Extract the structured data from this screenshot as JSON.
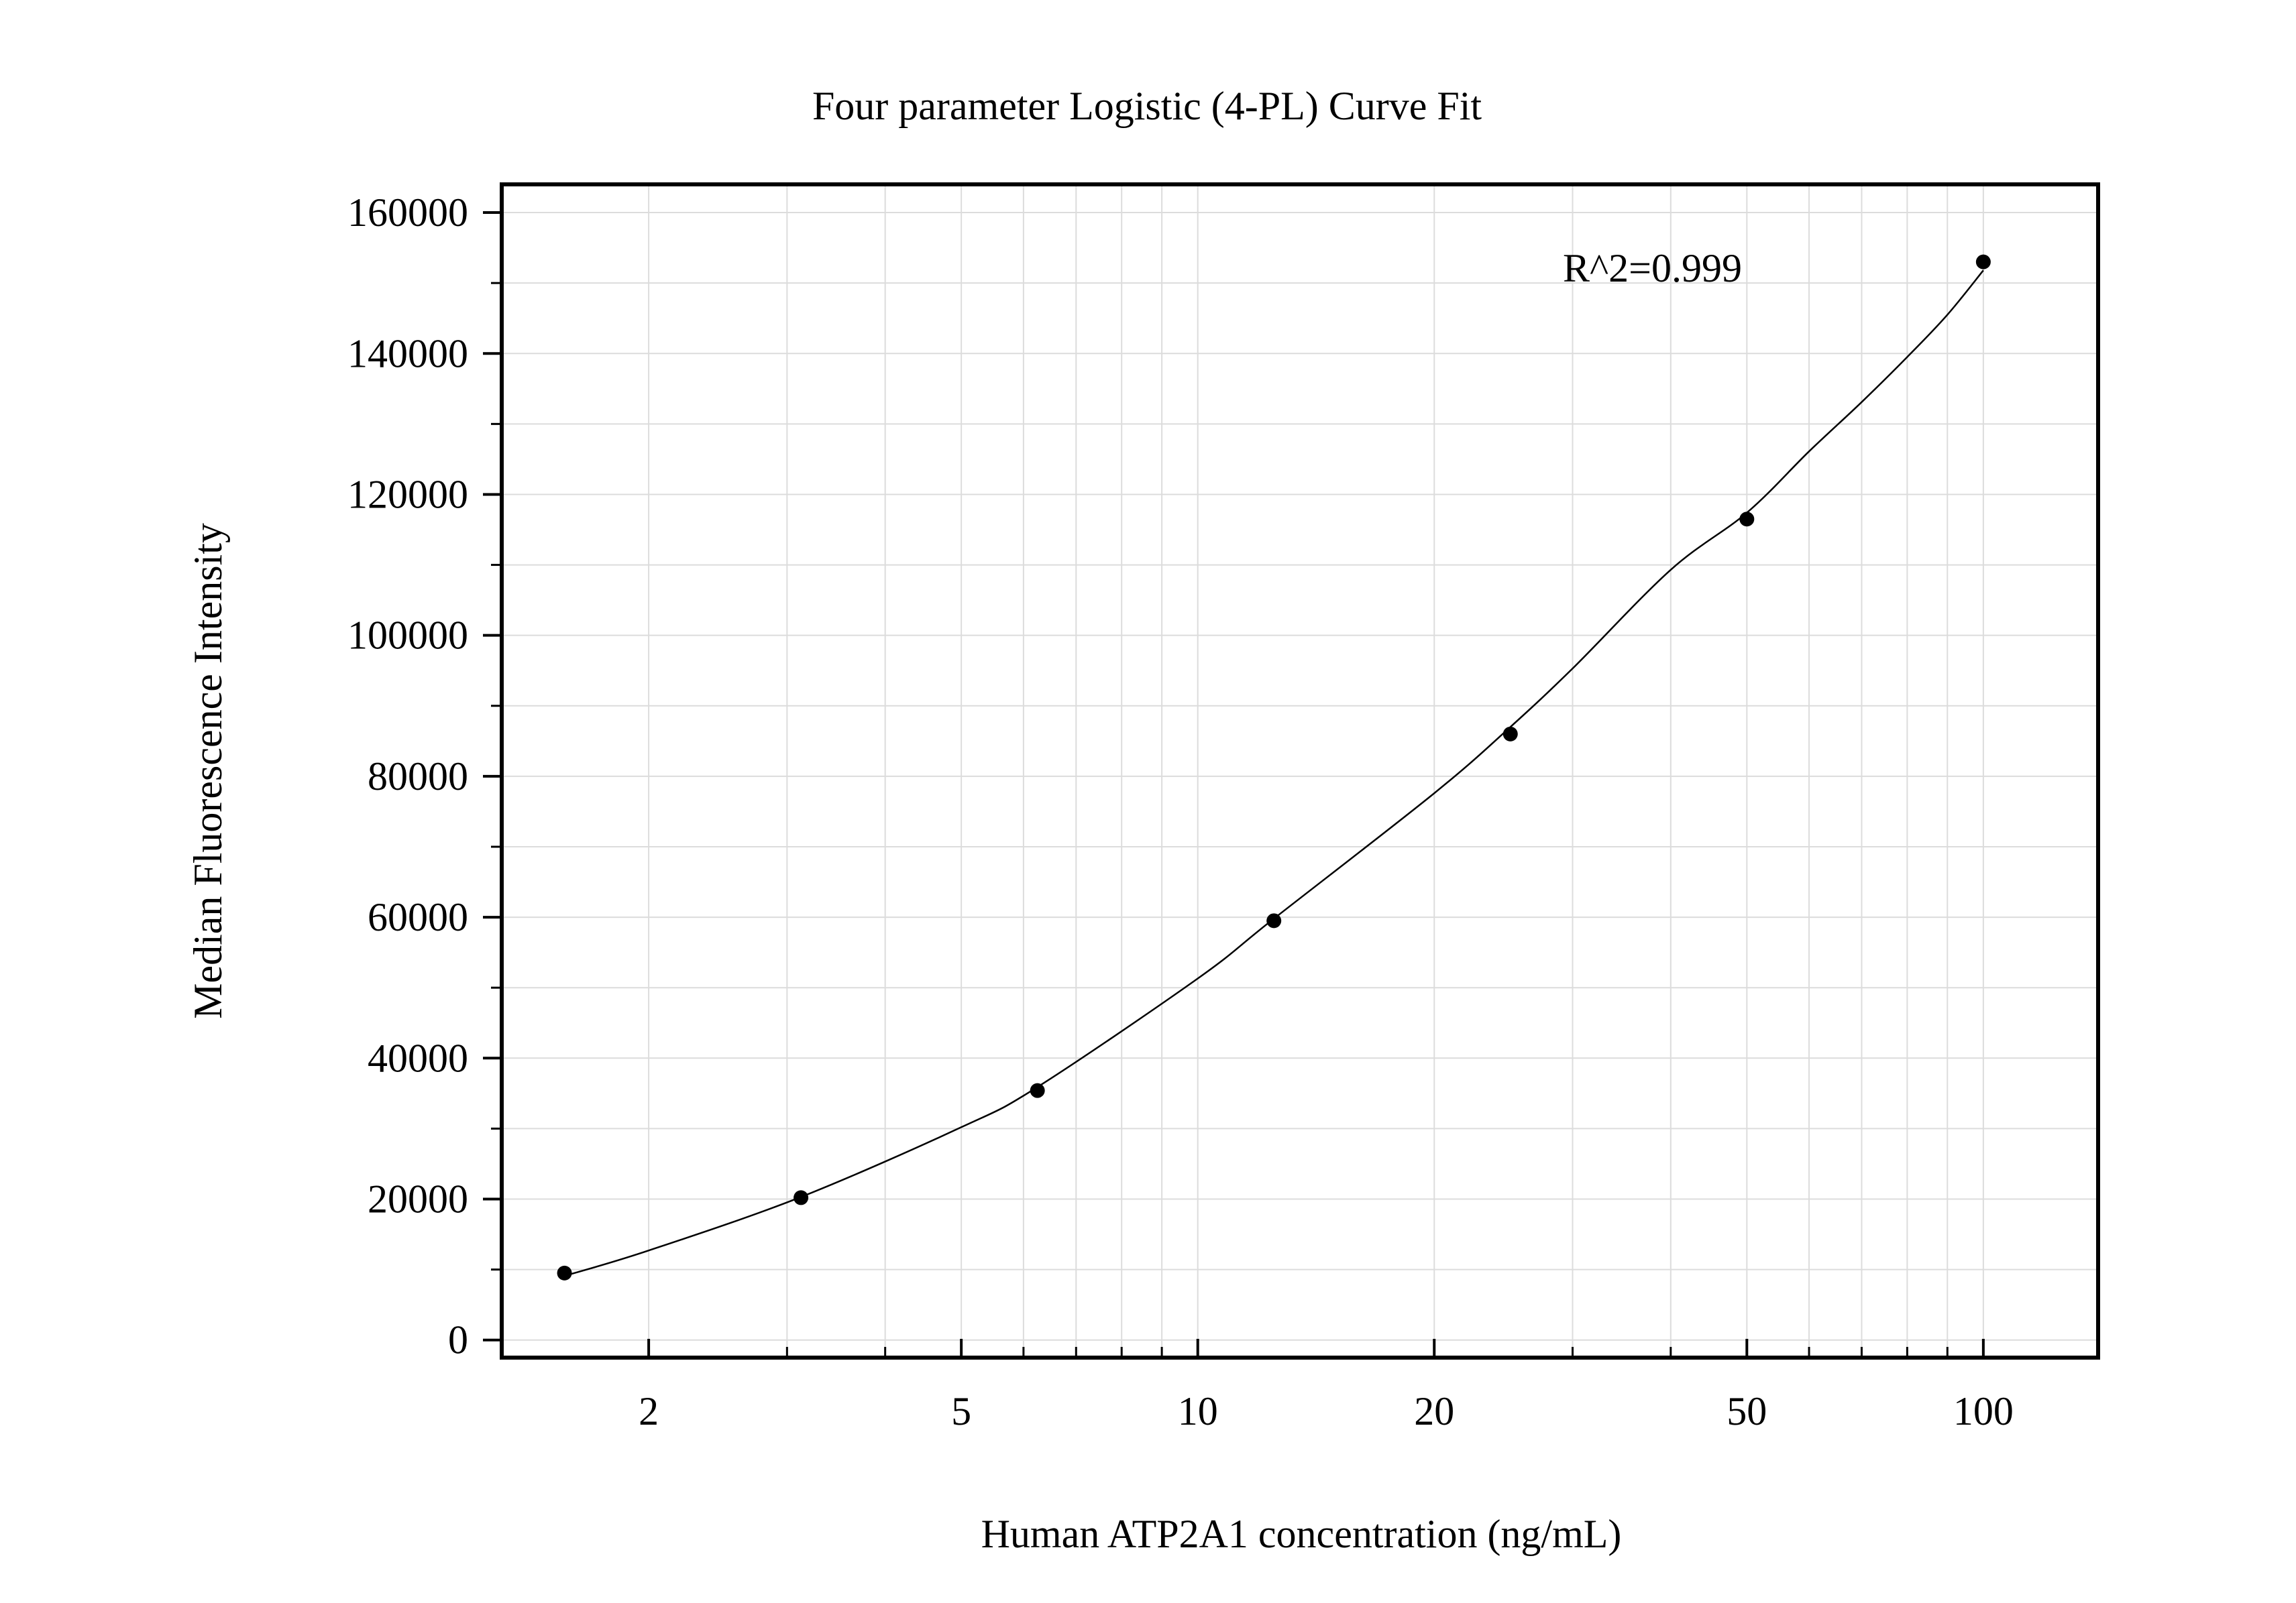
{
  "chart_data": {
    "type": "scatter",
    "title": "Four parameter Logistic (4-PL) Curve Fit",
    "xlabel": "Human ATP2A1 concentration (ng/mL)",
    "ylabel": "Median Fluorescence Intensity",
    "x_scale": "log",
    "xlim": [
      1.3,
      140
    ],
    "ylim": [
      -2500,
      164000
    ],
    "x_ticks": [
      2,
      5,
      10,
      20,
      50,
      100
    ],
    "x_tick_labels": [
      "2",
      "5",
      "10",
      "20",
      "50",
      "100"
    ],
    "y_ticks": [
      0,
      20000,
      40000,
      60000,
      80000,
      100000,
      120000,
      140000,
      160000
    ],
    "y_tick_labels": [
      "0",
      "20000",
      "40000",
      "60000",
      "80000",
      "100000",
      "120000",
      "140000",
      "160000"
    ],
    "grid": true,
    "annotation": "R^2=0.999",
    "series": [
      {
        "x": [
          1.5625,
          3.125,
          6.25,
          12.5,
          25,
          50,
          100
        ],
        "y": [
          9500,
          20200,
          35400,
          59500,
          86000,
          116500,
          153000
        ]
      }
    ],
    "fit_curve": {
      "x": [
        1.5625,
        2,
        3.125,
        5,
        6.25,
        10,
        12.5,
        20,
        25,
        30,
        40,
        50,
        60,
        70,
        80,
        90,
        100
      ],
      "y": [
        9100,
        12700,
        20300,
        30200,
        35900,
        51300,
        59800,
        77600,
        87000,
        95300,
        109300,
        117400,
        126100,
        133100,
        139500,
        145500,
        151800
      ]
    }
  }
}
